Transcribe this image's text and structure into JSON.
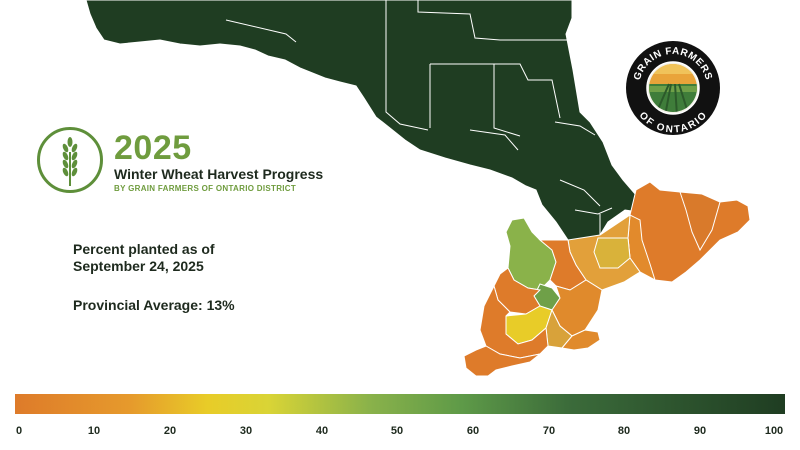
{
  "header": {
    "year": "2025",
    "subtitle": "Winter Wheat Harvest Progress",
    "district_line": "BY GRAIN FARMERS OF ONTARIO DISTRICT"
  },
  "info": {
    "planted_line1": "Percent planted as of",
    "planted_line2": "September 24, 2025",
    "average": "Provincial Average: 13%"
  },
  "logo": {
    "top_text": "GRAIN FARMERS",
    "bottom_text": "OF ONTARIO"
  },
  "icons": {
    "wheat": "wheat-icon"
  },
  "legend": {
    "ticks": [
      "0",
      "10",
      "20",
      "30",
      "40",
      "50",
      "60",
      "70",
      "80",
      "90",
      "100"
    ],
    "colors": {
      "0": "#de7b2a",
      "25": "#e8cc28",
      "50": "#8ab24a",
      "100": "#1f3d22"
    }
  },
  "colors": {
    "brand_green": "#6f9c3e",
    "northern_ontario": "#1f3d22",
    "text_dark": "#1e2a1e"
  }
}
